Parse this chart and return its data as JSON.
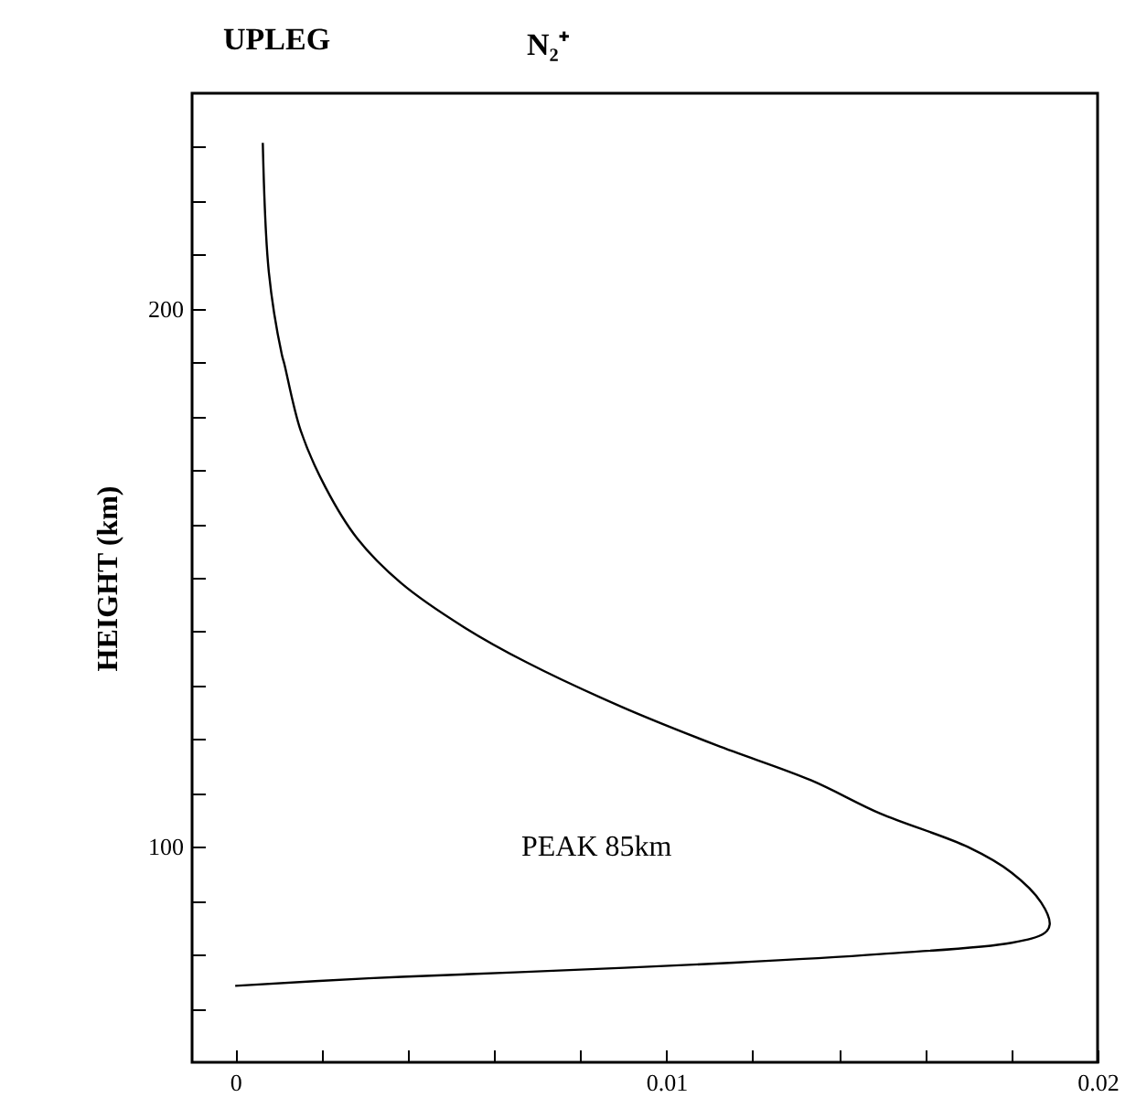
{
  "chart_data": {
    "type": "line",
    "title": "UPLEG",
    "subtitle": "N₂⁺",
    "ylabel": "HEIGHT (km)",
    "annotations": [
      "PEAK 85km"
    ],
    "xlim": [
      -0.001,
      0.02
    ],
    "ylim": [
      60,
      240
    ],
    "xticks": [
      0,
      {
        "value": 0.002,
        "label": null
      },
      {
        "value": 0.004,
        "label": null
      },
      {
        "value": 0.006,
        "label": null
      },
      {
        "value": 0.008,
        "label": null
      },
      0.01,
      {
        "value": 0.012,
        "label": null
      },
      {
        "value": 0.014,
        "label": null
      },
      {
        "value": 0.016,
        "label": null
      },
      {
        "value": 0.018,
        "label": null
      },
      0.02
    ],
    "yticks": [
      {
        "value": 70,
        "label": null
      },
      {
        "value": 80,
        "label": null
      },
      {
        "value": 90,
        "label": null
      },
      100,
      {
        "value": 110,
        "label": null
      },
      {
        "value": 120,
        "label": null
      },
      {
        "value": 130,
        "label": null
      },
      {
        "value": 140,
        "label": null
      },
      {
        "value": 150,
        "label": null
      },
      {
        "value": 160,
        "label": null
      },
      {
        "value": 170,
        "label": null
      },
      {
        "value": 180,
        "label": null
      },
      {
        "value": 190,
        "label": null
      },
      200,
      {
        "value": 210,
        "label": null
      },
      {
        "value": 220,
        "label": null
      },
      {
        "value": 230,
        "label": null
      }
    ],
    "grid": false,
    "series": [
      {
        "color": "#000000",
        "x": [
          0.00064,
          0.00078,
          0.00108,
          0.00114,
          0.00152,
          0.0021,
          0.00283,
          0.00385,
          0.00531,
          0.00678,
          0.00897,
          0.01116,
          0.01335,
          0.01496,
          0.01699,
          0.01801,
          0.01869,
          0.01889,
          0.01877,
          0.01801,
          0.01496,
          0.01157,
          0.00648,
          0.00309,
          0.0
        ],
        "values": [
          230.8,
          206.8,
          191.5,
          189.7,
          177.3,
          166.7,
          157.3,
          149,
          140.8,
          134.2,
          126,
          118.9,
          112.4,
          106.2,
          100,
          95.2,
          89.7,
          85.6,
          84,
          82.2,
          80.1,
          78.5,
          76.7,
          75.6,
          74.2
        ]
      }
    ]
  }
}
